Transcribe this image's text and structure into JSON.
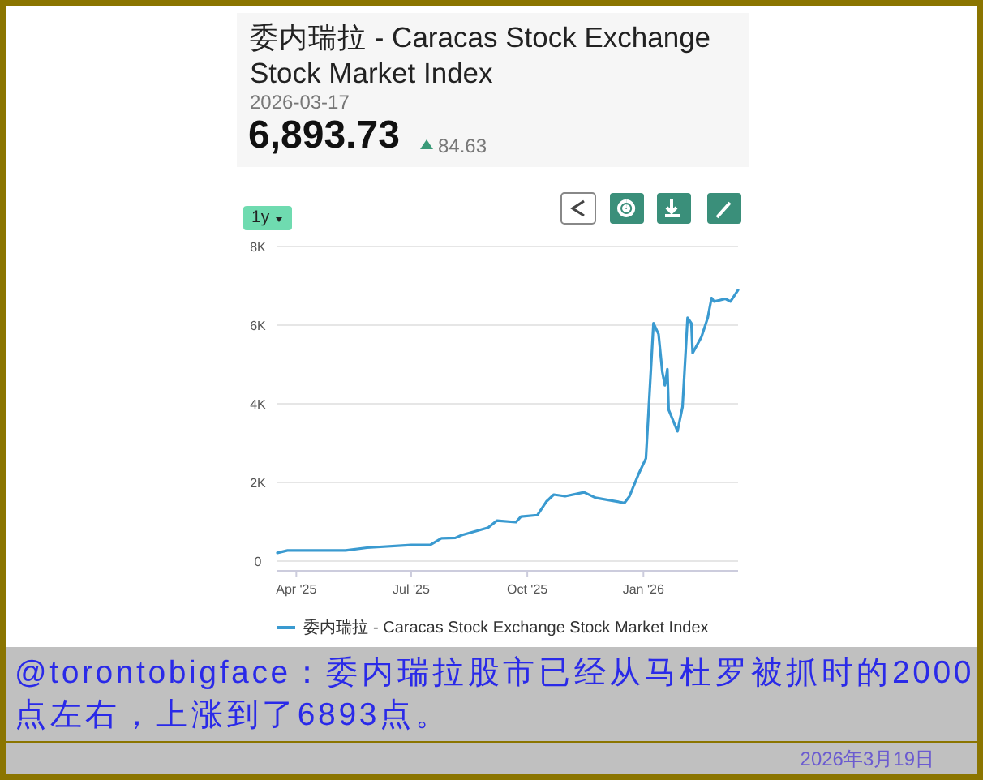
{
  "chart_data": {
    "type": "line",
    "title": "委内瑞拉 - Caracas Stock Exchange Stock Market Index",
    "x": [
      "2025-03-17",
      "2025-03-25",
      "2025-05-10",
      "2025-05-27",
      "2025-07-01",
      "2025-07-16",
      "2025-07-25",
      "2025-08-05",
      "2025-08-10",
      "2025-08-31",
      "2025-09-07",
      "2025-09-22",
      "2025-09-26",
      "2025-10-09",
      "2025-10-16",
      "2025-10-22",
      "2025-10-31",
      "2025-11-15",
      "2025-11-24",
      "2025-12-17",
      "2025-12-21",
      "2025-12-28",
      "2026-01-03",
      "2026-01-09",
      "2026-01-13",
      "2026-01-16",
      "2026-01-18",
      "2026-01-20",
      "2026-01-21",
      "2026-01-28",
      "2026-02-01",
      "2026-02-05",
      "2026-02-08",
      "2026-02-09",
      "2026-02-16",
      "2026-02-21",
      "2026-02-24",
      "2026-02-26",
      "2026-03-07",
      "2026-03-11",
      "2026-03-17"
    ],
    "series": [
      {
        "name": "委内瑞拉 - Caracas Stock Exchange Stock Market Index",
        "color": "#3a9ad0",
        "values": [
          210,
          270,
          270,
          340,
          410,
          410,
          580,
          590,
          660,
          850,
          1030,
          990,
          1130,
          1170,
          1510,
          1690,
          1650,
          1750,
          1610,
          1480,
          1650,
          2200,
          2610,
          6050,
          5770,
          4810,
          4470,
          4880,
          3850,
          3300,
          3920,
          6190,
          6050,
          5290,
          5700,
          6190,
          6690,
          6600,
          6670,
          6600,
          6893.73
        ]
      }
    ],
    "xlim": [
      "2025-03-17",
      "2026-03-17"
    ],
    "xticks": [
      {
        "value": "2025-04-01",
        "label": "Apr '25"
      },
      {
        "value": "2025-07-01",
        "label": "Jul '25"
      },
      {
        "value": "2025-10-01",
        "label": "Oct '25"
      },
      {
        "value": "2026-01-01",
        "label": "Jan '26"
      }
    ],
    "ylim": [
      0,
      8000
    ],
    "yticks": [
      {
        "value": 0,
        "label": "0"
      },
      {
        "value": 2000,
        "label": "2K"
      },
      {
        "value": 4000,
        "label": "4K"
      },
      {
        "value": 6000,
        "label": "6K"
      },
      {
        "value": 8000,
        "label": "8K"
      }
    ],
    "grid": "y",
    "legend": "bottom",
    "marker": "none",
    "line_style": "solid",
    "annotations": [
      "2026-03-17",
      "6,893.73",
      "84.63",
      "1y",
      "@torontobigface：委内瑞拉股市已经从马杜罗被抓时的2000点左右，上涨到了6893点。",
      "2026年3月19日"
    ]
  }
}
